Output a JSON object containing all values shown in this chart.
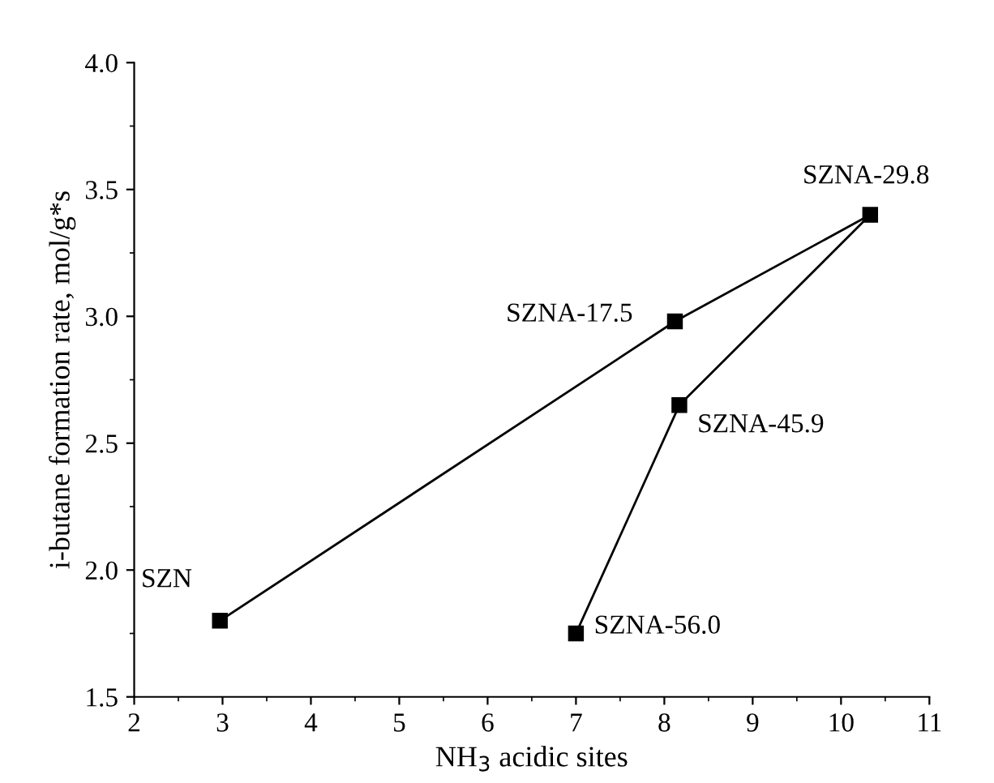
{
  "chart_data": {
    "type": "line",
    "xlabel": "NH$_{3}$ acidic sites",
    "ylabel": "i-butane formation rate, mol/g*s",
    "series": [
      {
        "color": "#000000",
        "x": [
          2.97,
          8.12,
          10.33,
          8.17,
          7.0
        ],
        "values": [
          1.8,
          2.98,
          3.4,
          2.65,
          1.75
        ]
      }
    ],
    "marker": "square",
    "line_style": "solid",
    "xlim": [
      2,
      11
    ],
    "xticks": [
      2,
      3,
      4,
      5,
      6,
      7,
      8,
      9,
      10,
      11
    ],
    "ylim": [
      1.5,
      4.0
    ],
    "yticks": [
      {
        "value": 1.5,
        "label": "1.5"
      },
      {
        "value": 2.0,
        "label": "2.0"
      },
      {
        "value": 2.5,
        "label": "2.5"
      },
      {
        "value": 3.0,
        "label": "3.0"
      },
      {
        "value": 3.5,
        "label": "3.5"
      },
      {
        "value": 4.0,
        "label": "4.0"
      }
    ],
    "annotations": [
      {
        "text": "SZN",
        "x": 2.97,
        "y": 1.8
      },
      {
        "text": "SZNA-17.5",
        "x": 8.12,
        "y": 2.98
      },
      {
        "text": "SZNA-29.8",
        "x": 10.33,
        "y": 3.4
      },
      {
        "text": "SZNA-45.9",
        "x": 8.17,
        "y": 2.65
      },
      {
        "text": "SZNA-56.0",
        "x": 7.0,
        "y": 1.75
      }
    ]
  }
}
